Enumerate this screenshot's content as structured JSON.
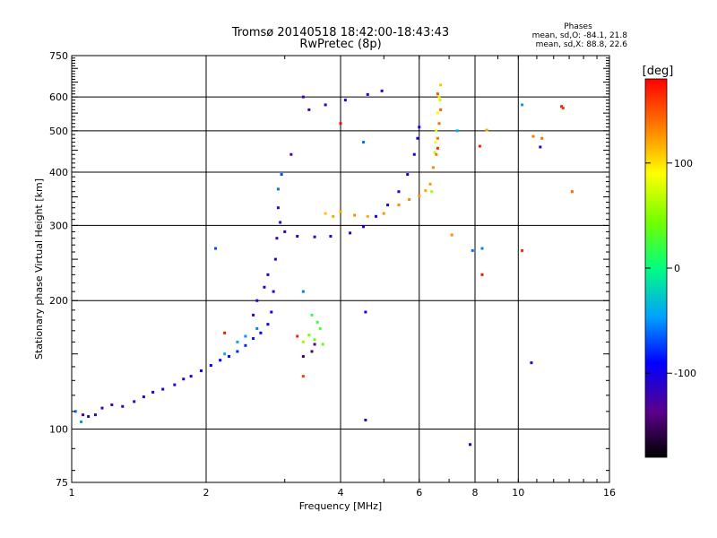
{
  "chart_data": {
    "type": "scatter",
    "title": "Tromsø 20140518 18:42:00-18:43:43",
    "subtitle": "RwPretec (8p)",
    "xlabel": "Frequency [MHz]",
    "ylabel": "Stationary phase Virtual Height [km]",
    "x_scale": "log2",
    "y_scale": "log",
    "xlim": [
      1,
      16
    ],
    "ylim": [
      75,
      750
    ],
    "x_ticks": [
      1,
      2,
      4,
      6,
      8,
      10,
      16
    ],
    "y_ticks": [
      75,
      100,
      200,
      300,
      400,
      500,
      600,
      750
    ],
    "grid": true,
    "phase_info": {
      "title": "Phases",
      "line_o": "mean, sd,O: -84.1, 21.8",
      "line_x": "mean, sd,X:  88.8, 22.6"
    },
    "colorbar": {
      "label": "[deg]",
      "range": [
        -180,
        180
      ],
      "ticks": [
        100,
        0,
        -100
      ],
      "colormap": "rainbow"
    },
    "series": [
      {
        "points": [
          [
            1.06,
            108,
            -125
          ],
          [
            1.09,
            107,
            -115
          ],
          [
            1.13,
            108,
            -110
          ],
          [
            1.17,
            112,
            -120
          ],
          [
            1.23,
            114,
            -125
          ],
          [
            1.3,
            113,
            -120
          ],
          [
            1.38,
            116,
            -118
          ],
          [
            1.45,
            119,
            -115
          ],
          [
            1.52,
            122,
            -110
          ],
          [
            1.6,
            124,
            -110
          ],
          [
            1.7,
            127,
            -105
          ],
          [
            1.78,
            131,
            -105
          ],
          [
            1.85,
            133,
            -100
          ],
          [
            1.95,
            137,
            -95
          ],
          [
            2.05,
            141,
            -90
          ],
          [
            2.15,
            145,
            -90
          ],
          [
            2.25,
            148,
            -85
          ],
          [
            2.35,
            152,
            -80
          ],
          [
            2.45,
            157,
            -80
          ],
          [
            2.55,
            163,
            -85
          ],
          [
            2.65,
            168,
            -90
          ],
          [
            2.75,
            176,
            -95
          ],
          [
            2.8,
            188,
            -100
          ],
          [
            2.83,
            210,
            -110
          ],
          [
            2.86,
            250,
            -120
          ],
          [
            2.88,
            280,
            -125
          ],
          [
            2.9,
            330,
            -120
          ],
          [
            2.93,
            305,
            -115
          ],
          [
            3.0,
            290,
            -115
          ],
          [
            3.2,
            283,
            -120
          ],
          [
            3.5,
            282,
            -118
          ],
          [
            3.8,
            283,
            -115
          ],
          [
            4.2,
            288,
            -112
          ],
          [
            4.5,
            298,
            -110
          ],
          [
            4.8,
            315,
            -110
          ],
          [
            5.1,
            335,
            -105
          ],
          [
            5.4,
            360,
            -100
          ],
          [
            5.65,
            395,
            -100
          ],
          [
            5.85,
            440,
            -100
          ],
          [
            5.95,
            480,
            -100
          ],
          [
            6.0,
            510,
            -100
          ],
          [
            3.4,
            560,
            -125
          ],
          [
            3.7,
            575,
            -118
          ],
          [
            4.1,
            590,
            -112
          ],
          [
            4.6,
            608,
            -110
          ],
          [
            4.95,
            620,
            -105
          ],
          [
            2.55,
            185,
            -110
          ],
          [
            2.6,
            200,
            -108
          ],
          [
            2.7,
            215,
            -105
          ],
          [
            2.75,
            230,
            -103
          ],
          [
            3.3,
            148,
            -150
          ],
          [
            3.45,
            152,
            -145
          ],
          [
            3.5,
            158,
            -140
          ],
          [
            2.1,
            265,
            -70
          ],
          [
            3.1,
            440,
            -135
          ],
          [
            3.3,
            600,
            -120
          ],
          [
            4.55,
            105,
            -120
          ],
          [
            4.55,
            188,
            -110
          ],
          [
            7.8,
            92,
            -95
          ],
          [
            10.7,
            143,
            -110
          ],
          [
            11.2,
            458,
            -110
          ]
        ]
      },
      {
        "points": [
          [
            1.02,
            110,
            -60
          ],
          [
            1.05,
            104,
            -50
          ],
          [
            2.2,
            150,
            -40
          ],
          [
            2.35,
            160,
            -45
          ],
          [
            2.45,
            165,
            -50
          ],
          [
            2.6,
            172,
            -55
          ],
          [
            2.9,
            365,
            -60
          ],
          [
            2.95,
            395,
            -70
          ],
          [
            3.3,
            210,
            -55
          ],
          [
            4.5,
            470,
            -60
          ],
          [
            7.9,
            262,
            -60
          ],
          [
            8.3,
            265,
            -55
          ],
          [
            7.3,
            500,
            -40
          ],
          [
            10.2,
            575,
            -50
          ]
        ]
      },
      {
        "points": [
          [
            3.45,
            185,
            20
          ],
          [
            3.55,
            178,
            25
          ],
          [
            3.6,
            172,
            30
          ],
          [
            3.5,
            162,
            40
          ],
          [
            3.3,
            160,
            60
          ],
          [
            3.65,
            158,
            35
          ],
          [
            3.4,
            166,
            45
          ],
          [
            6.4,
            360,
            60
          ],
          [
            6.5,
            445,
            70
          ],
          [
            6.55,
            500,
            80
          ],
          [
            6.6,
            550,
            90
          ],
          [
            6.65,
            600,
            100
          ],
          [
            6.7,
            640,
            110
          ],
          [
            6.68,
            590,
            70
          ],
          [
            6.52,
            470,
            90
          ]
        ]
      },
      {
        "points": [
          [
            4.0,
            323,
            120
          ],
          [
            4.3,
            317,
            130
          ],
          [
            4.6,
            315,
            120
          ],
          [
            5.0,
            320,
            125
          ],
          [
            5.4,
            335,
            130
          ],
          [
            5.7,
            345,
            130
          ],
          [
            6.0,
            352,
            125
          ],
          [
            6.2,
            362,
            120
          ],
          [
            6.35,
            375,
            125
          ],
          [
            6.45,
            410,
            130
          ],
          [
            6.55,
            440,
            135
          ],
          [
            6.6,
            480,
            140
          ],
          [
            6.65,
            520,
            140
          ],
          [
            6.7,
            560,
            145
          ],
          [
            6.6,
            610,
            150
          ],
          [
            3.7,
            320,
            110
          ],
          [
            3.85,
            315,
            120
          ],
          [
            7.1,
            285,
            130
          ],
          [
            8.5,
            502,
            120
          ],
          [
            10.8,
            485,
            135
          ],
          [
            11.3,
            480,
            140
          ],
          [
            13.2,
            360,
            145
          ]
        ]
      },
      {
        "points": [
          [
            3.3,
            133,
            155
          ],
          [
            3.2,
            165,
            170
          ],
          [
            10.2,
            262,
            165
          ],
          [
            12.5,
            570,
            170
          ],
          [
            12.6,
            565,
            160
          ],
          [
            8.3,
            230,
            175
          ],
          [
            4.0,
            520,
            178
          ],
          [
            8.2,
            460,
            170
          ],
          [
            2.2,
            168,
            175
          ],
          [
            6.6,
            455,
            165
          ]
        ]
      }
    ]
  }
}
